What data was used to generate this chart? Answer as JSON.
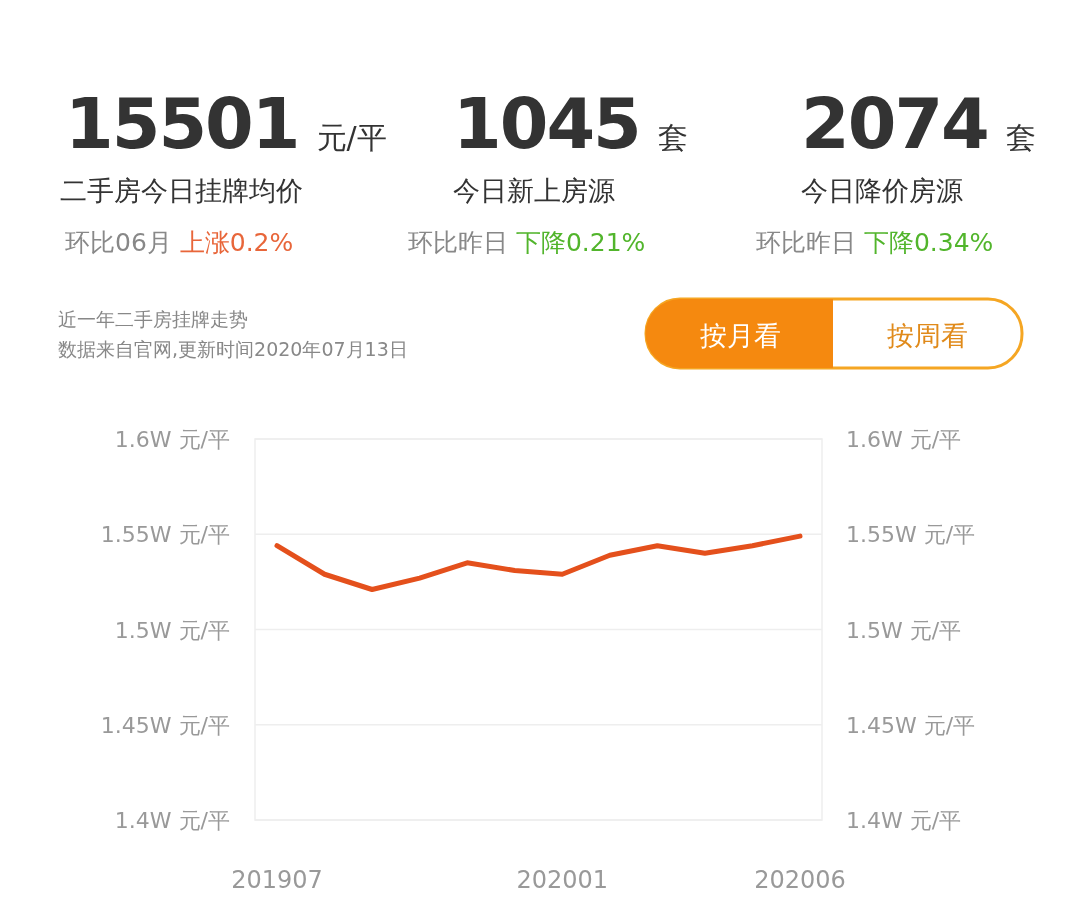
{
  "chart_data": [
    {
      "type": "other",
      "annotations": [
        "15501",
        "元/平",
        "二手房今日挂牌均价",
        "环比06月",
        "上涨0.2%",
        "1045",
        "套",
        "今日新上房源",
        "环比昨日",
        "下降0.21%",
        "2074",
        "套",
        "今日降价房源",
        "环比昨日",
        "下降0.34%"
      ],
      "colors": [
        "#e8663a",
        "#52b52c",
        "#52b52c"
      ]
    },
    {
      "type": "line",
      "title": "近一年二手房挂牌走势",
      "subtitle": "数据来自官网,更新时间2020年07月13日",
      "annotations": [
        "按月看",
        "按周看"
      ],
      "categories": [
        "201907",
        null,
        null,
        null,
        null,
        null,
        "202001",
        null,
        null,
        null,
        null,
        "202006"
      ],
      "series": [
        {
          "color": "#e4501c",
          "values": [
            1.544,
            1.529,
            1.521,
            1.527,
            1.535,
            1.531,
            1.529,
            1.539,
            1.544,
            1.54,
            1.544,
            1.549
          ]
        }
      ],
      "ylim": [
        1.4,
        1.6
      ],
      "yticks": [
        {
          "value": 1.4,
          "label": "1.4W 元/平"
        },
        {
          "value": 1.45,
          "label": "1.45W 元/平"
        },
        {
          "value": 1.5,
          "label": "1.5W 元/平"
        },
        {
          "value": 1.55,
          "label": "1.55W 元/平"
        },
        {
          "value": 1.6,
          "label": "1.6W 元/平"
        }
      ],
      "y2lim": [
        1.4,
        1.6
      ],
      "y2ticks": [
        {
          "value": 1.4,
          "label": "1.4W 元/平"
        },
        {
          "value": 1.45,
          "label": "1.45W 元/平"
        },
        {
          "value": 1.5,
          "label": "1.5W 元/平"
        },
        {
          "value": 1.55,
          "label": "1.55W 元/平"
        },
        {
          "value": 1.6,
          "label": "1.6W 元/平"
        }
      ],
      "grid": "y",
      "marker": "none",
      "line_style": "solid"
    }
  ]
}
